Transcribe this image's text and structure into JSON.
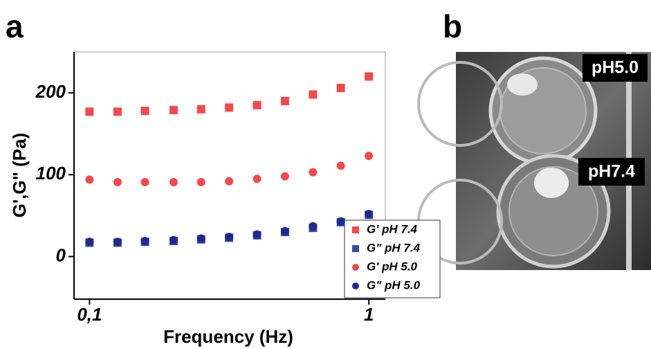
{
  "panel_labels": [
    "a",
    "b"
  ],
  "photo_labels": [
    "pH5.0",
    "pH7.4"
  ],
  "chart_data": {
    "type": "scatter",
    "xlabel": "Frequency (Hz)",
    "ylabel": "G',G\" (Pa)",
    "log_x": true,
    "x": [
      0.1,
      0.126,
      0.158,
      0.2,
      0.251,
      0.316,
      0.398,
      0.501,
      0.631,
      0.794,
      1.0
    ],
    "xlim": [
      0.088,
      1.146
    ],
    "ylim": [
      -52,
      250
    ],
    "xticks": [
      {
        "value": 0.1,
        "label": "0,1"
      },
      1
    ],
    "yticks": [
      0,
      100,
      200
    ],
    "legend": "lower right",
    "series": [
      {
        "name": "G' pH 7.4",
        "color": "#ee4b4f",
        "marker": "square",
        "values": [
          177,
          177,
          178,
          179,
          180,
          182,
          185,
          190,
          198,
          206,
          220
        ]
      },
      {
        "name": "G\" pH 7.4",
        "color": "#3b4a9a",
        "marker": "square",
        "values": [
          17,
          17,
          18,
          19,
          21,
          23,
          26,
          30,
          35,
          42,
          51
        ]
      },
      {
        "name": "G' pH 5.0",
        "color": "#ee4b4f",
        "marker": "circle",
        "values": [
          94,
          91,
          91,
          91,
          91,
          92,
          95,
          98,
          103,
          111,
          123
        ]
      },
      {
        "name": "G\" pH 5.0",
        "color": "#1f2a8c",
        "marker": "circle",
        "values": [
          18,
          18,
          19,
          20,
          22,
          24,
          27,
          31,
          37,
          43,
          52
        ]
      }
    ]
  }
}
